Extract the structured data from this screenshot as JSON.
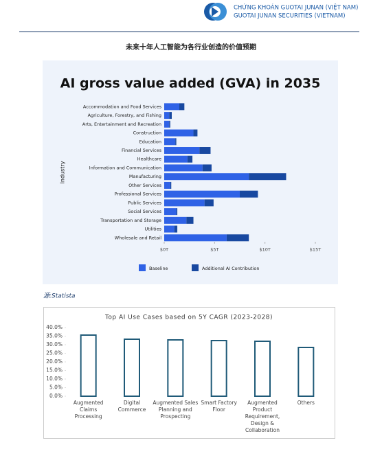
{
  "header": {
    "company_vn": "CHỨNG KHOÁN GUOTAI JUNAN (VIỆT NAM)",
    "company_en": "GUOTAI JUNAN SECURITIES (VIETNAM)"
  },
  "caption": "未来十年人工智能为各行业创造的价值预期",
  "source": "源:Statista",
  "chart_data": [
    {
      "type": "hbar_stacked",
      "title": "AI gross value added (GVA) in 2035",
      "ylabel": "Industry",
      "categories": [
        "Accommodation and Food Services",
        "Agriculture, Forestry, and Fishing",
        "Arts, Entertainment and Recreation",
        "Construction",
        "Education",
        "Financial Services",
        "Healthcare",
        "Information and Communication",
        "Manufacturing",
        "Other Services",
        "Professional Services",
        "Public Services",
        "Social Services",
        "Transportation and Storage",
        "Utilities",
        "Wholesale and Retail"
      ],
      "series": [
        {
          "name": "Baseline",
          "color": "#2f62e6",
          "values": [
            1.5,
            0.5,
            0.5,
            2.9,
            1.1,
            3.5,
            2.3,
            3.8,
            8.4,
            0.6,
            7.5,
            4.0,
            1.2,
            2.2,
            1.0,
            6.2
          ]
        },
        {
          "name": "Additional AI Contribution",
          "color": "#1848a0",
          "values": [
            0.5,
            0.25,
            0.1,
            0.4,
            0.1,
            1.1,
            0.5,
            0.9,
            3.7,
            0.1,
            1.8,
            0.9,
            0.1,
            0.7,
            0.3,
            2.2
          ]
        }
      ],
      "xlim": [
        0,
        15
      ],
      "xticks": [
        {
          "value": 0,
          "label": "$0T"
        },
        {
          "value": 5,
          "label": "$5T"
        },
        {
          "value": 10,
          "label": "$10T"
        },
        {
          "value": 15,
          "label": "$15T"
        }
      ],
      "legend": "bottom"
    },
    {
      "type": "bar",
      "title": "Top AI Use Cases based on 5Y CAGR (2023-2028)",
      "categories": [
        "Augmented Claims Processing",
        "Digital Commerce",
        "Augmented Sales Planning and Prospecting",
        "Smart Factory Floor",
        "Augmented Product Requirement, Design & Collaboration",
        "Others"
      ],
      "values": [
        35.6,
        33.2,
        32.8,
        32.4,
        32.0,
        28.4
      ],
      "color": "#1f5a78",
      "ylim": [
        0,
        40
      ],
      "yticks": [
        {
          "value": 0,
          "label": "0.0%"
        },
        {
          "value": 5,
          "label": "5.0%"
        },
        {
          "value": 10,
          "label": "10.0%"
        },
        {
          "value": 15,
          "label": "15.0%"
        },
        {
          "value": 20,
          "label": "20.0%"
        },
        {
          "value": 25,
          "label": "25.0%"
        },
        {
          "value": 30,
          "label": "30.0%"
        },
        {
          "value": 35,
          "label": "35.0%"
        },
        {
          "value": 40,
          "label": "40.0%"
        }
      ]
    }
  ]
}
